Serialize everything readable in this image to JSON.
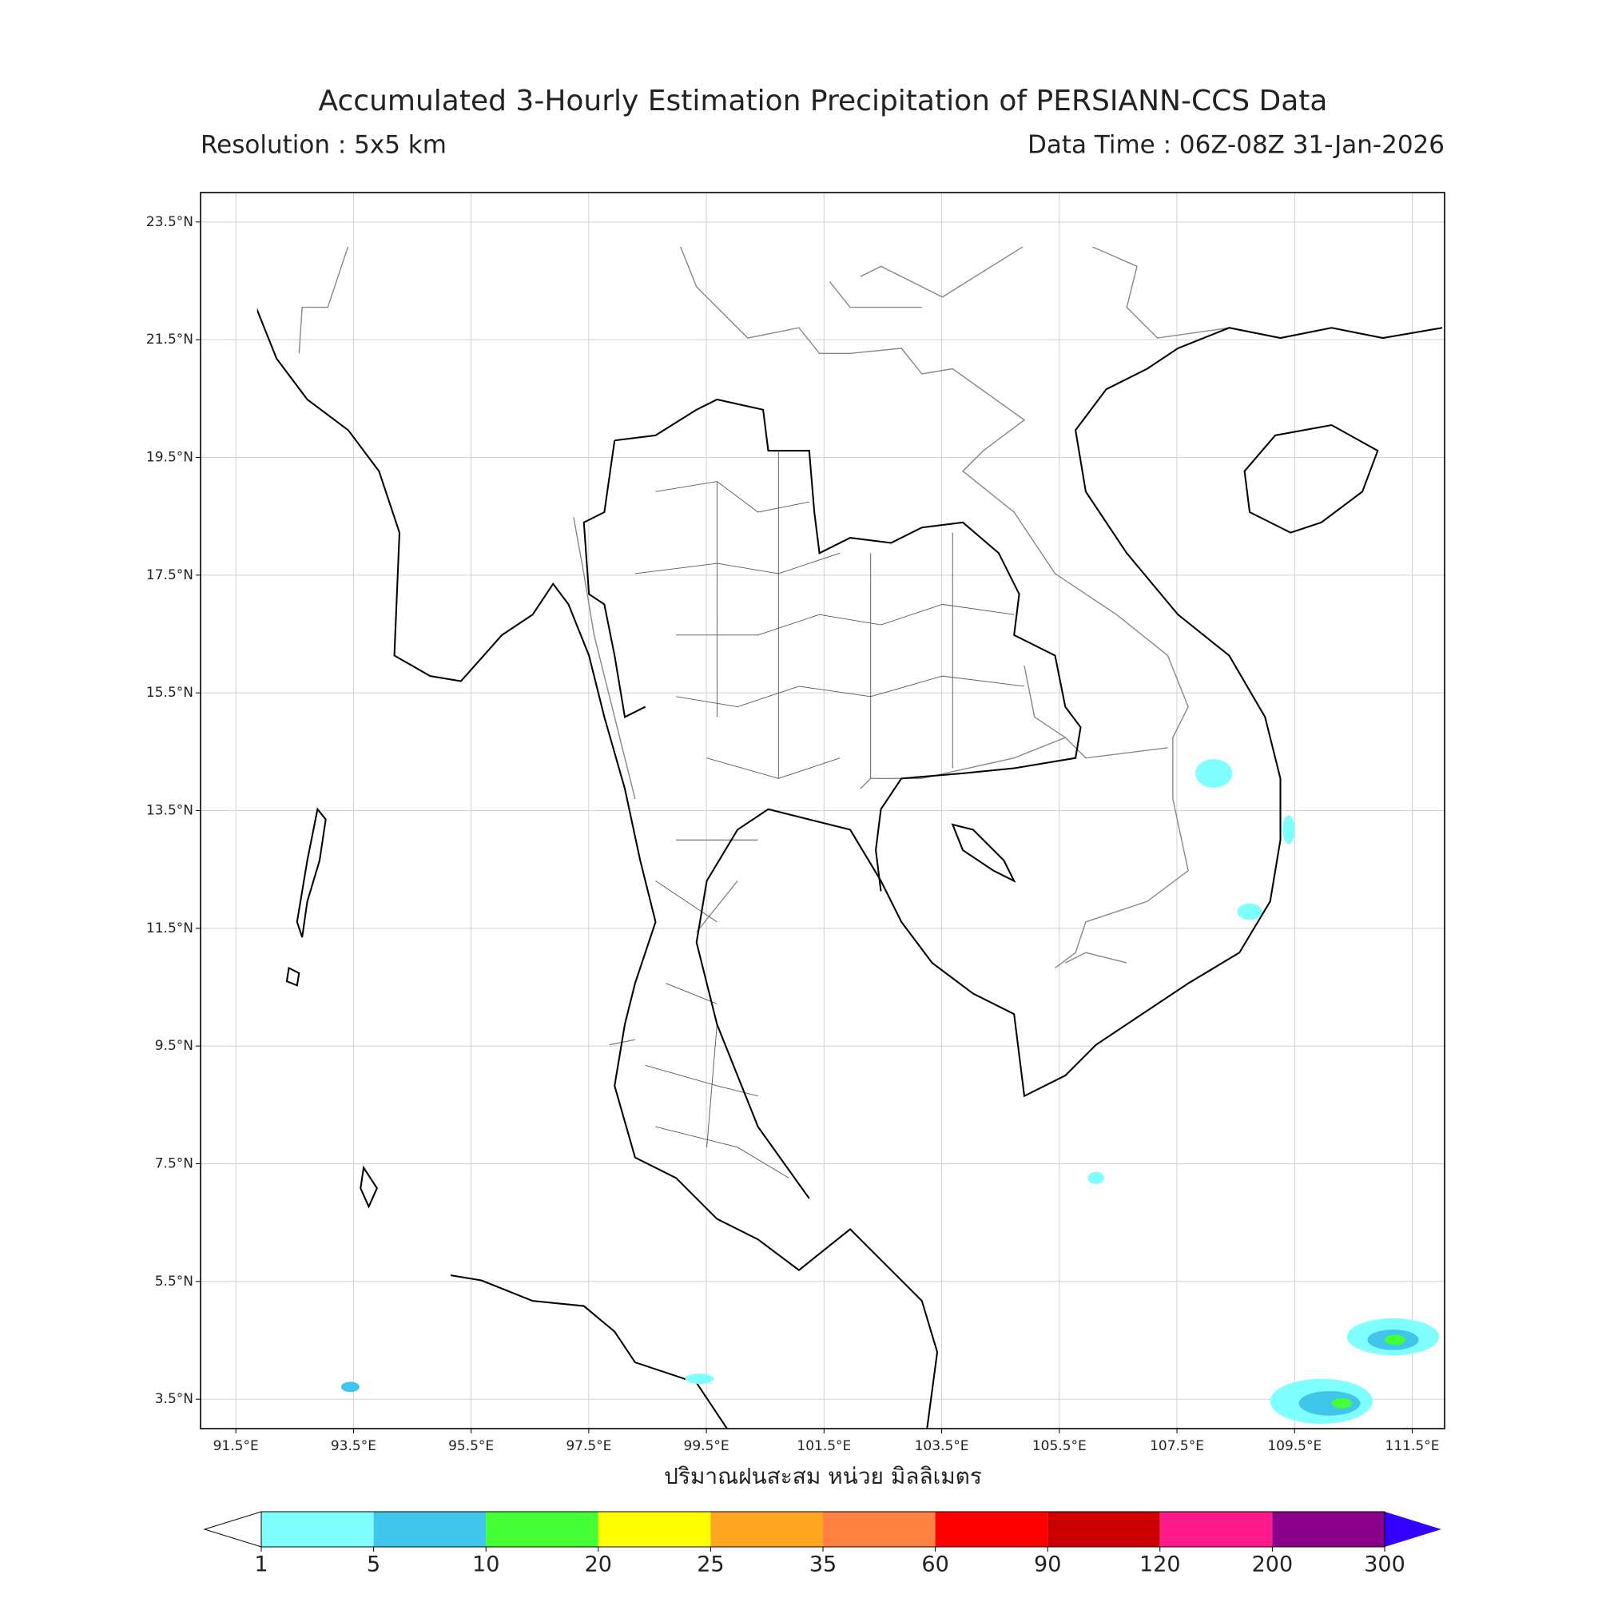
{
  "chart_data": {
    "type": "map",
    "title": "Accumulated 3-Hourly Estimation Precipitation of PERSIANN-CCS Data",
    "subtitle_left": "Resolution : 5x5 km",
    "subtitle_right": "Data Time : 06Z-08Z 31-Jan-2026",
    "xlabel": "ปริมาณฝนสะสม หน่วย มิลลิเมตร",
    "xlim": [
      90.9,
      112.05
    ],
    "ylim": [
      3.0,
      24.0
    ],
    "xticks": [
      {
        "value": 91.5,
        "label": "91.5°E"
      },
      {
        "value": 93.5,
        "label": "93.5°E"
      },
      {
        "value": 95.5,
        "label": "95.5°E"
      },
      {
        "value": 97.5,
        "label": "97.5°E"
      },
      {
        "value": 99.5,
        "label": "99.5°E"
      },
      {
        "value": 101.5,
        "label": "101.5°E"
      },
      {
        "value": 103.5,
        "label": "103.5°E"
      },
      {
        "value": 105.5,
        "label": "105.5°E"
      },
      {
        "value": 107.5,
        "label": "107.5°E"
      },
      {
        "value": 109.5,
        "label": "109.5°E"
      },
      {
        "value": 111.5,
        "label": "111.5°E"
      }
    ],
    "yticks": [
      {
        "value": 23.5,
        "label": "23.5°N"
      },
      {
        "value": 21.5,
        "label": "21.5°N"
      },
      {
        "value": 19.5,
        "label": "19.5°N"
      },
      {
        "value": 17.5,
        "label": "17.5°N"
      },
      {
        "value": 15.5,
        "label": "15.5°N"
      },
      {
        "value": 13.5,
        "label": "13.5°N"
      },
      {
        "value": 11.5,
        "label": "11.5°N"
      },
      {
        "value": 9.5,
        "label": "9.5°N"
      },
      {
        "value": 7.5,
        "label": "7.5°N"
      },
      {
        "value": 5.5,
        "label": "5.5°N"
      },
      {
        "value": 3.5,
        "label": "3.5°N"
      }
    ],
    "grid": true,
    "colorbar": {
      "levels": [
        1,
        5,
        10,
        20,
        25,
        35,
        60,
        90,
        120,
        200,
        300
      ],
      "colors": [
        "#80ffff",
        "#3fc6ea",
        "#44ff33",
        "#ffff00",
        "#ffa620",
        "#ff8040",
        "#ff0000",
        "#cc0000",
        "#ff1a8c",
        "#8b008b"
      ],
      "under_color": "#ffffff",
      "over_color": "#3300ff"
    }
  }
}
